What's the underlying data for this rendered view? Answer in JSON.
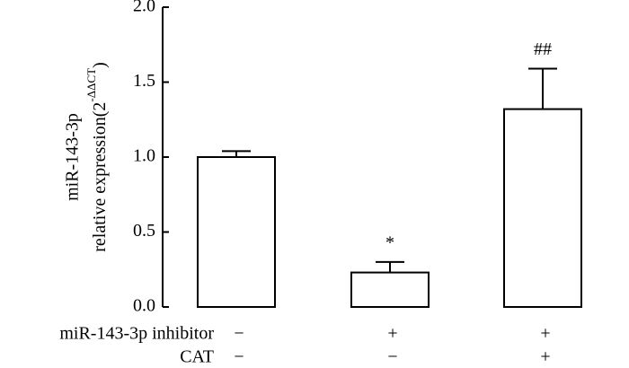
{
  "chart_data": {
    "type": "bar",
    "ylabel_line1": "miR-143-3p",
    "ylabel_base": "relative expression(2",
    "ylabel_superscript": "-ΔΔCT",
    "ylabel_close": ")",
    "values": [
      1.0,
      0.23,
      1.32
    ],
    "errors": [
      0.04,
      0.07,
      0.27
    ],
    "annotations": [
      null,
      "*",
      "##"
    ],
    "conditions": [
      {
        "label": "miR-143-3p inhibitor",
        "values": [
          "−",
          "+",
          "+"
        ]
      },
      {
        "label": "CAT",
        "values": [
          "−",
          "−",
          "+"
        ]
      }
    ],
    "color": "#ffffff",
    "ylim": [
      0,
      2.0
    ],
    "yticks": [
      {
        "value": 0,
        "label": "0.0"
      },
      {
        "value": 0.5,
        "label": "0.5"
      },
      {
        "value": 1.0,
        "label": "1.0"
      },
      {
        "value": 1.5,
        "label": "1.5"
      },
      {
        "value": 2.0,
        "label": "2.0"
      }
    ]
  }
}
